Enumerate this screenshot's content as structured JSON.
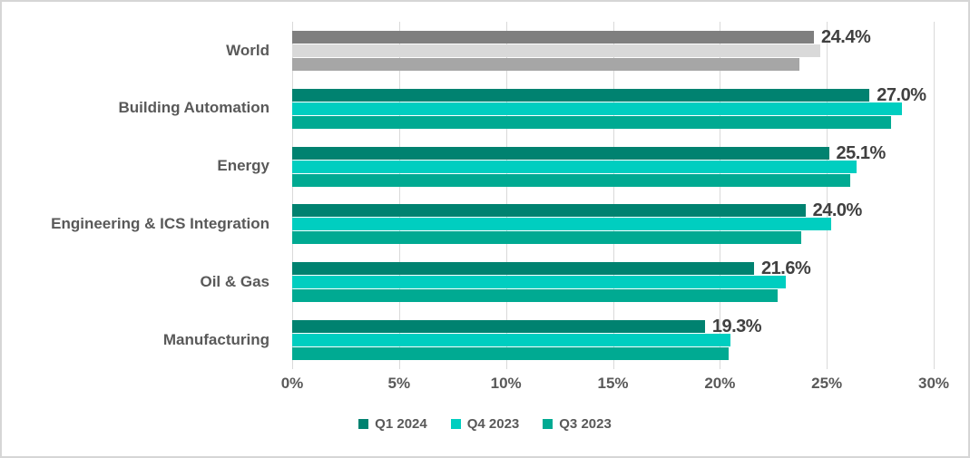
{
  "chart_data": {
    "type": "bar",
    "orientation": "horizontal",
    "title": "",
    "categories": [
      "World",
      "Building Automation",
      "Energy",
      "Engineering & ICS Integration",
      "Oil & Gas",
      "Manufacturing"
    ],
    "series": [
      {
        "name": "Q1 2024",
        "color": "#008270",
        "world_color": "#7F7F7F",
        "values": [
          24.4,
          27.0,
          25.1,
          24.0,
          21.6,
          19.3
        ]
      },
      {
        "name": "Q4 2023",
        "color": "#00CEC0",
        "world_color": "#D9D9D9",
        "values": [
          24.7,
          28.5,
          26.4,
          25.2,
          23.1,
          20.5
        ]
      },
      {
        "name": "Q3 2023",
        "color": "#00AA92",
        "world_color": "#A6A6A6",
        "values": [
          23.7,
          28.0,
          26.1,
          23.8,
          22.7,
          20.4
        ]
      }
    ],
    "data_labels": [
      "24.4%",
      "27.0%",
      "25.1%",
      "24.0%",
      "21.6%",
      "19.3%"
    ],
    "data_label_series": "Q1 2024",
    "x_tick_values": [
      0,
      5,
      10,
      15,
      20,
      25,
      30
    ],
    "x_tick_labels": [
      "0%",
      "5%",
      "10%",
      "15%",
      "20%",
      "25%",
      "30%"
    ],
    "xlim": [
      0,
      30
    ],
    "legend": [
      "Q1 2024",
      "Q4 2023",
      "Q3 2023"
    ],
    "legend_position": "bottom",
    "grid": "vertical",
    "colors": {
      "background": "#FFFFFF",
      "frame_border": "#D6D6D6",
      "gridline": "#D9D9D9",
      "axis_text": "#595959",
      "category_text": "#595959",
      "data_label_text": "#404040"
    }
  }
}
